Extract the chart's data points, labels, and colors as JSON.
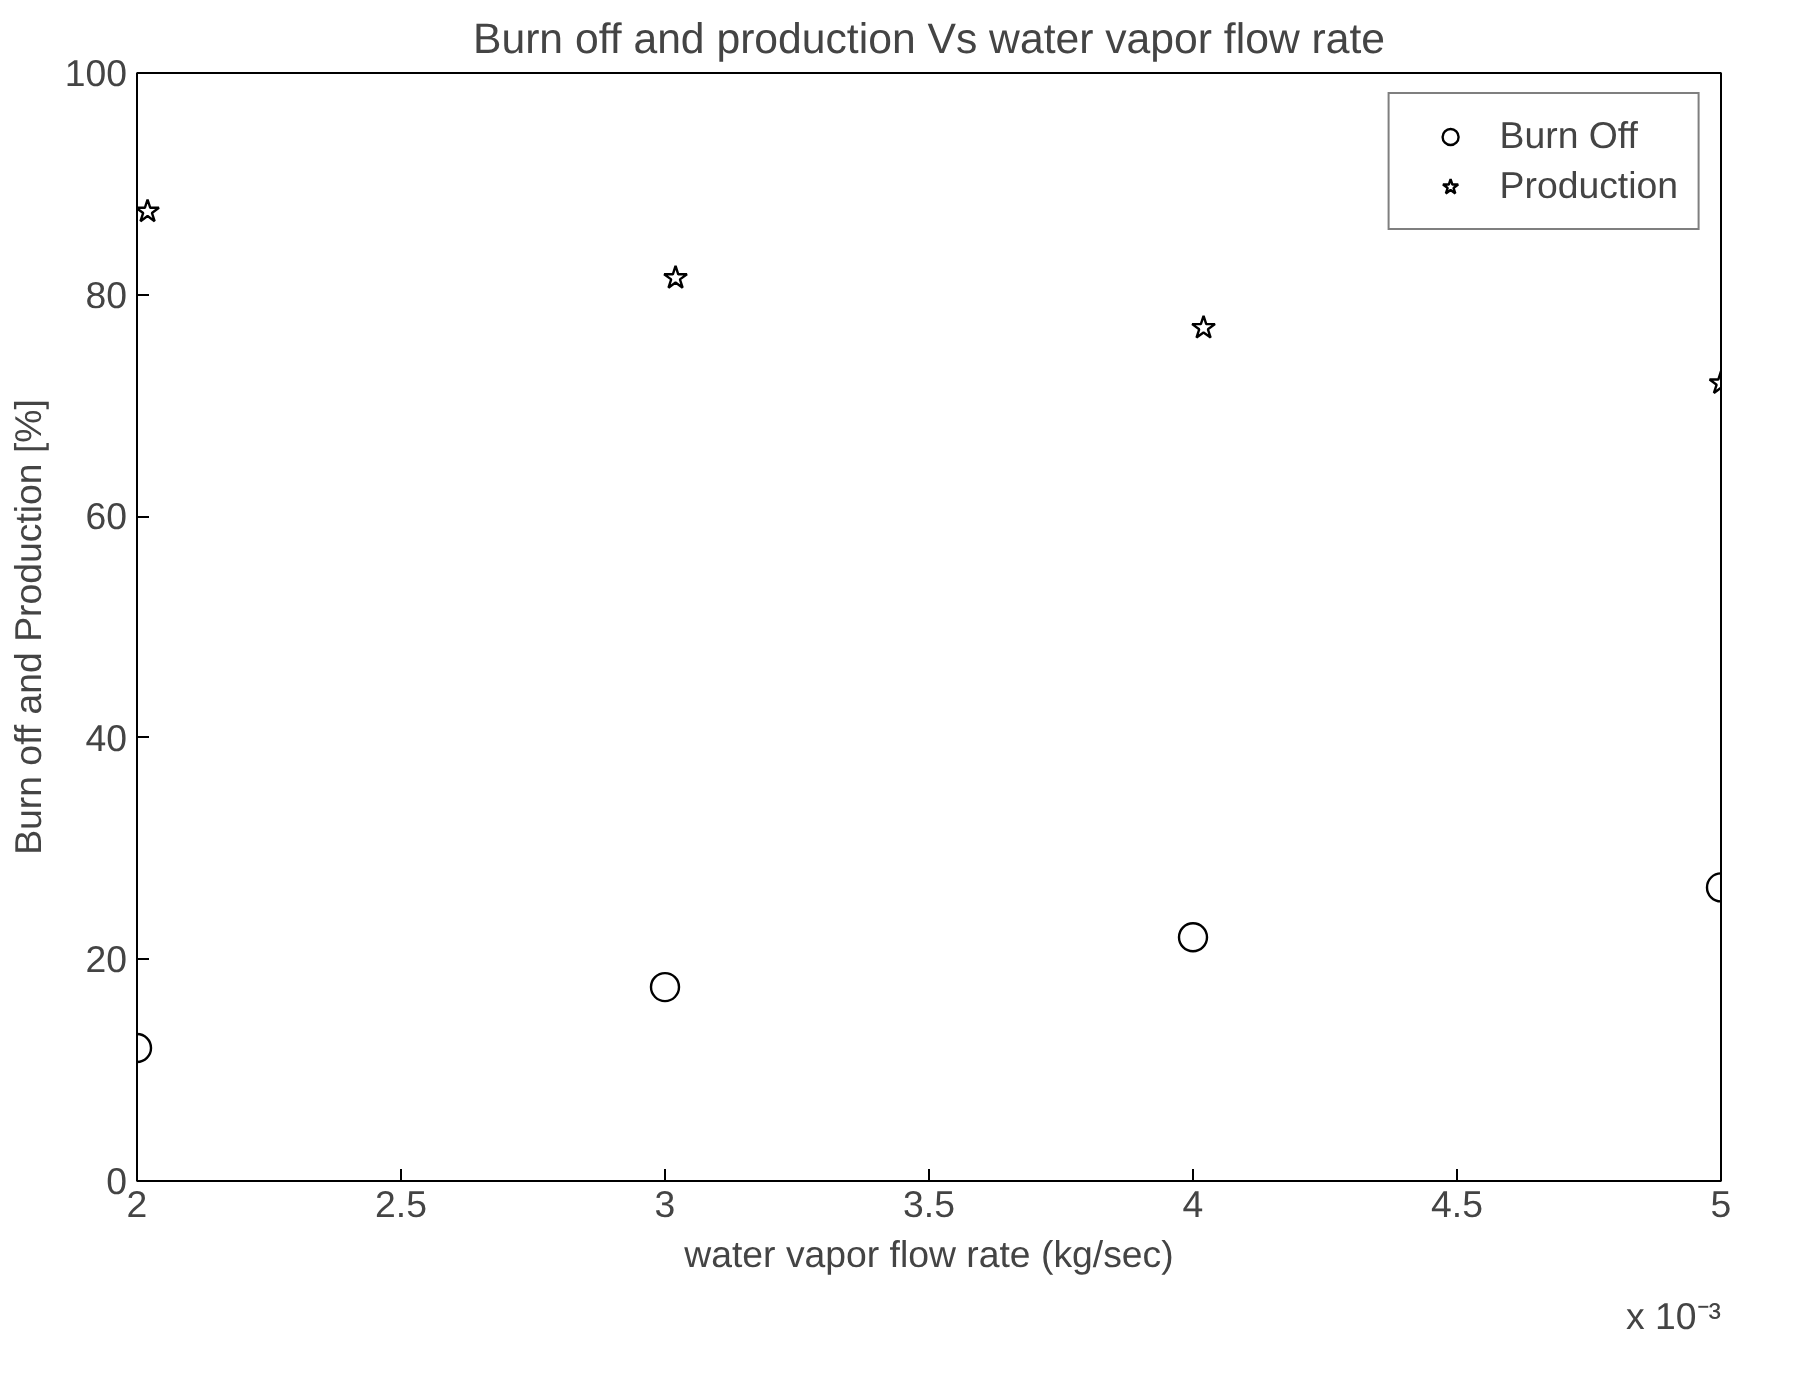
{
  "chart_data": {
    "type": "scatter",
    "title": "Burn off and production Vs water vapor flow rate",
    "xlabel": "water vapor flow rate (kg/sec)",
    "ylabel": "Burn off and Production [%]",
    "annotations": [
      "x 10⁻³"
    ],
    "xlim": [
      2,
      5
    ],
    "ylim": [
      0,
      100
    ],
    "xticks": [
      2,
      {
        "value": 2.5,
        "label": "2.5"
      },
      3,
      {
        "value": 3.5,
        "label": "3.5"
      },
      4,
      {
        "value": 4.5,
        "label": "4.5"
      },
      5
    ],
    "yticks": [
      0,
      20,
      40,
      60,
      80,
      100
    ],
    "grid": false,
    "legend": "top right",
    "series": [
      {
        "name": "Burn Off",
        "color": "#000000",
        "marker": "circle",
        "x": [
          2,
          3,
          4,
          5
        ],
        "values": [
          12,
          17.5,
          22,
          26.5
        ]
      },
      {
        "name": "Production",
        "color": "#000000",
        "marker": "star",
        "x": [
          2.02,
          3.02,
          4.02,
          5
        ],
        "values": [
          87.5,
          81.5,
          77,
          72
        ]
      }
    ]
  }
}
